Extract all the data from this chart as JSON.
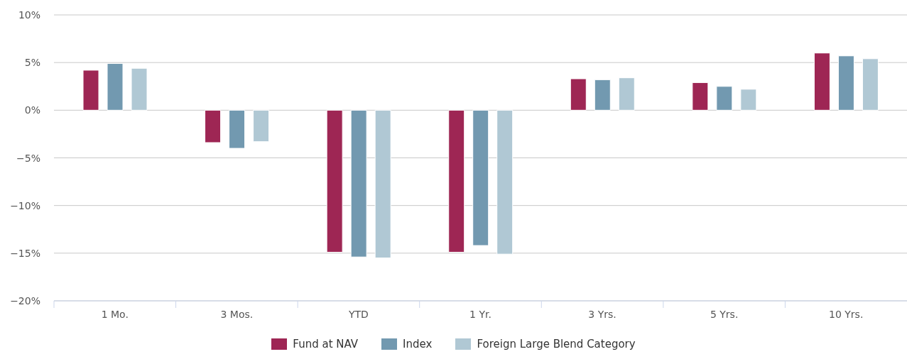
{
  "chart_data": {
    "type": "bar",
    "categories": [
      "1 Mo.",
      "3 Mos.",
      "YTD",
      "1 Yr.",
      "3 Yrs.",
      "5 Yrs.",
      "10 Yrs."
    ],
    "series": [
      {
        "name": "Fund at NAV",
        "color": "#9e2654",
        "values": [
          4.2,
          -3.4,
          -14.9,
          -14.9,
          3.3,
          2.9,
          6.0
        ]
      },
      {
        "name": "Index",
        "color": "#7299b0",
        "values": [
          4.9,
          -4.0,
          -15.4,
          -14.2,
          3.2,
          2.5,
          5.7
        ]
      },
      {
        "name": "Foreign Large Blend Category",
        "color": "#b0c8d4",
        "values": [
          4.4,
          -3.3,
          -15.5,
          -15.1,
          3.4,
          2.2,
          5.4
        ]
      }
    ],
    "ylim": [
      -20,
      10
    ],
    "yticks": [
      {
        "value": -20,
        "label": "−20%"
      },
      {
        "value": -15,
        "label": "−15%"
      },
      {
        "value": -10,
        "label": "−10%"
      },
      {
        "value": -5,
        "label": "−5%"
      },
      {
        "value": 0,
        "label": "0%"
      },
      {
        "value": 5,
        "label": "5%"
      },
      {
        "value": 10,
        "label": "10%"
      }
    ],
    "grid": "y",
    "legend": "bottom"
  }
}
